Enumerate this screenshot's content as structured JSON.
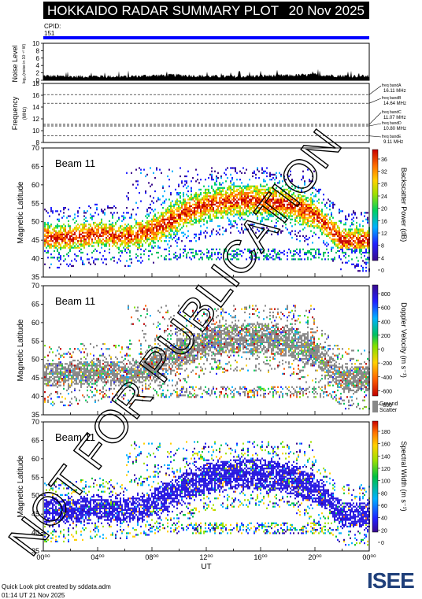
{
  "header": {
    "title": "HOKKAIDO RADAR SUMMARY PLOT",
    "date": "20 Nov 2025"
  },
  "cpid": {
    "label": "CPID:",
    "value": "151"
  },
  "noise_panel": {
    "ylabel": "Noise Level",
    "ylabel_sub": "log₁₀(noise in 10⁻¹⁰ W)",
    "yticks": [
      "10",
      "8",
      "6",
      "4",
      "2",
      "0"
    ]
  },
  "freq_panel": {
    "ylabel": "Frequency",
    "ylabel_sub": "(MHz)",
    "yticks": [
      "18",
      "16",
      "14",
      "12",
      "10",
      "8"
    ],
    "bands": [
      {
        "name": "freq bandA",
        "value": "16.11 MHz"
      },
      {
        "name": "freq bandB",
        "value": "14.64 MHz"
      },
      {
        "name": "freq bandC",
        "value": "11.07 MHz"
      },
      {
        "name": "freq bandD",
        "value": "10.80 MHz"
      },
      {
        "name": "freq bandE",
        "value": "9.11 MHz"
      }
    ]
  },
  "beam_label": "Beam 11",
  "lat_ylabel": "Magnetic Latitude",
  "lat_yticks": [
    "70",
    "65",
    "60",
    "55",
    "50",
    "45",
    "40",
    "35"
  ],
  "power_colorbar": {
    "label": "Backscatter Power (dB)",
    "ticks": [
      "36",
      "32",
      "28",
      "24",
      "20",
      "16",
      "12",
      "8",
      "4",
      "0"
    ]
  },
  "velocity_colorbar": {
    "label": "Doppler Velocity (m s⁻¹)",
    "ticks": [
      "800",
      "600",
      "400",
      "200",
      "0",
      "-200",
      "-400",
      "-600",
      "-800"
    ],
    "ground_label_1": "Ground",
    "ground_label_2": "Scatter"
  },
  "width_colorbar": {
    "label": "Spectral Width (m s⁻¹)",
    "ticks": [
      "180",
      "160",
      "140",
      "120",
      "100",
      "80",
      "60",
      "40",
      "20",
      "0"
    ]
  },
  "xticks": [
    "00⁰⁰",
    "04⁰⁰",
    "08⁰⁰",
    "12⁰⁰",
    "16⁰⁰",
    "20⁰⁰",
    "00⁰⁰"
  ],
  "xlabel": "UT",
  "watermark": "NOT FOR PUBLICATION",
  "footer": {
    "line1": "Quick Look plot created by sddata.adm",
    "line2": "01:14 UT 21 Nov 2025"
  },
  "logo": "ISEE",
  "colors": {
    "header_bg": "#000000",
    "cpid_bar": "#0000ff",
    "ground_scatter": "#888888"
  },
  "chart_data": [
    {
      "type": "area",
      "name": "noise",
      "ylim": [
        0,
        10
      ],
      "xlim_hours": [
        0,
        24
      ],
      "x": [
        0,
        2,
        4,
        6,
        8,
        10,
        12,
        14,
        16,
        18,
        20,
        22,
        24
      ],
      "values": [
        1.2,
        1.0,
        1.1,
        1.0,
        1.3,
        1.4,
        1.1,
        1.0,
        1.2,
        1.3,
        1.5,
        1.2,
        1.1
      ]
    },
    {
      "type": "line",
      "name": "frequency",
      "ylim": [
        8,
        18
      ],
      "bands_mhz": [
        16.11,
        14.64,
        11.07,
        10.8,
        9.11
      ]
    },
    {
      "type": "heatmap",
      "name": "power",
      "ylim": [
        35,
        70
      ],
      "xlim_hours": [
        0,
        24
      ],
      "clim": [
        0,
        36
      ],
      "echo_centre_hours": [
        0,
        2,
        4,
        6,
        8,
        10,
        12,
        14,
        16,
        18,
        20,
        22,
        24
      ],
      "echo_centre_lat": [
        46,
        46,
        47,
        46,
        48,
        52,
        55,
        56,
        56,
        55,
        52,
        45,
        45
      ]
    },
    {
      "type": "heatmap",
      "name": "velocity",
      "ylim": [
        35,
        70
      ],
      "xlim_hours": [
        0,
        24
      ],
      "clim": [
        -800,
        800
      ]
    },
    {
      "type": "heatmap",
      "name": "width",
      "ylim": [
        35,
        70
      ],
      "xlim_hours": [
        0,
        24
      ],
      "clim": [
        0,
        180
      ]
    }
  ]
}
